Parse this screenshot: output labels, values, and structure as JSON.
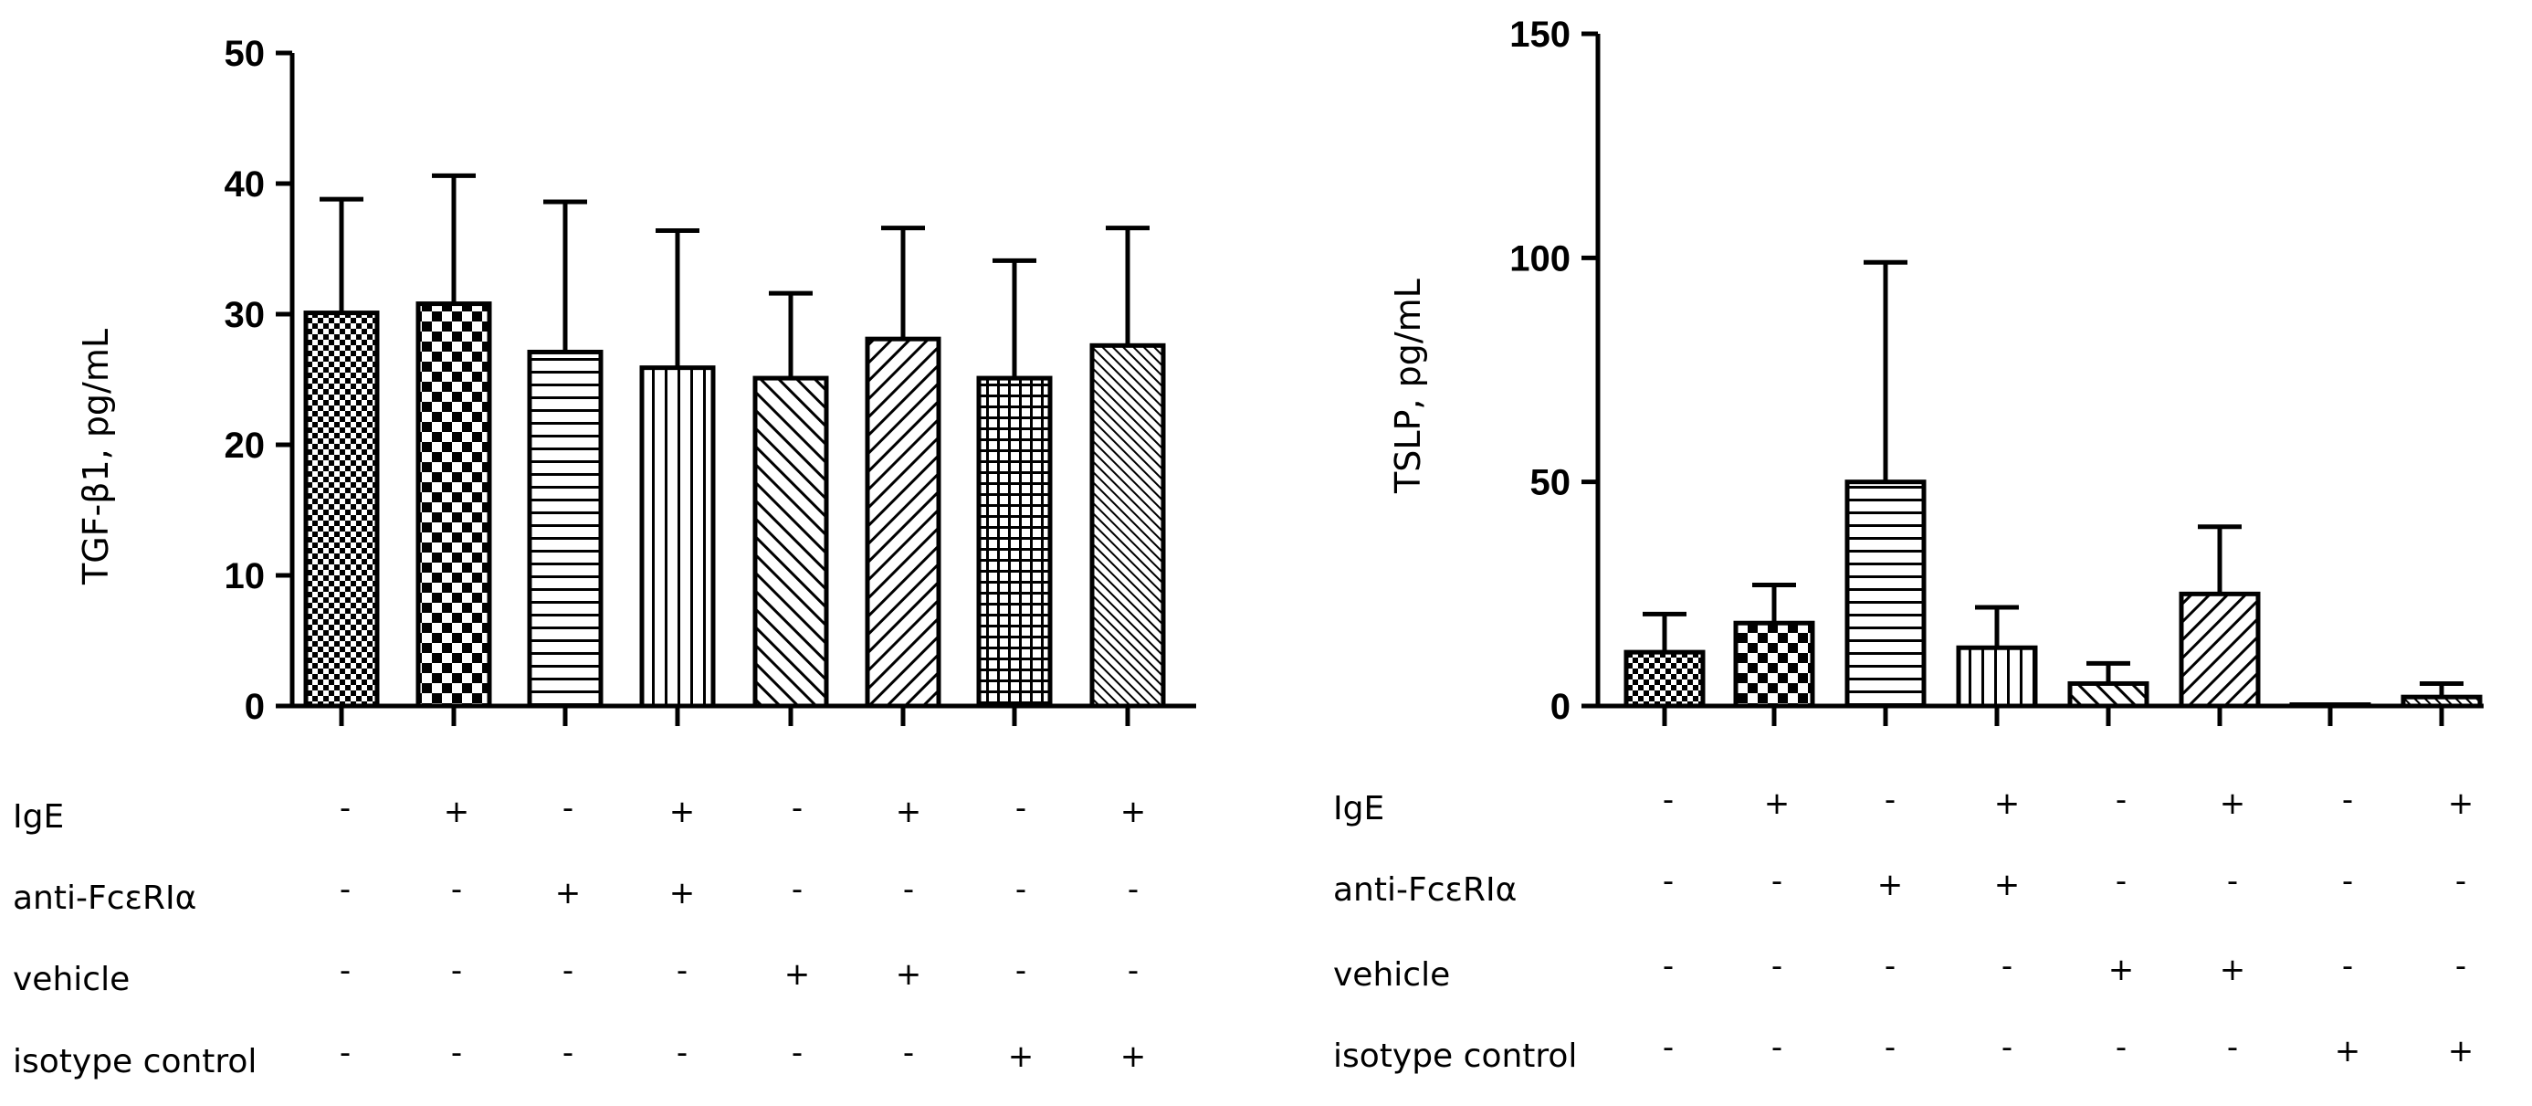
{
  "chart_data": [
    {
      "type": "bar",
      "ylabel": "TGF-β1, pg/mL",
      "ylim": [
        0,
        50
      ],
      "yticks": [
        "0",
        "10",
        "20",
        "30",
        "40",
        "50"
      ],
      "values": [
        30.1,
        30.8,
        27.1,
        25.9,
        25.1,
        28.1,
        25.1,
        27.6
      ],
      "errors": [
        8.7,
        9.8,
        11.5,
        10.5,
        6.5,
        8.5,
        9.0,
        9.0
      ],
      "patterns": [
        "checker-fine",
        "checker-coarse",
        "horizontal",
        "vertical",
        "diag-up",
        "diag-down",
        "grid",
        "diag-dense"
      ],
      "rows": [
        {
          "label": "IgE",
          "signs": [
            "-",
            "+",
            "-",
            "+",
            "-",
            "+",
            "-",
            "+"
          ]
        },
        {
          "label": "anti-FcεRIα",
          "signs": [
            "-",
            "-",
            "+",
            "+",
            "-",
            "-",
            "-",
            "-"
          ]
        },
        {
          "label": "vehicle",
          "signs": [
            "-",
            "-",
            "-",
            "-",
            "+",
            "+",
            "-",
            "-"
          ]
        },
        {
          "label": "isotype control",
          "signs": [
            "-",
            "-",
            "-",
            "-",
            "-",
            "-",
            "+",
            "+"
          ]
        }
      ]
    },
    {
      "type": "bar",
      "ylabel": "TSLP, pg/mL",
      "ylim": [
        0,
        150
      ],
      "yticks": [
        "0",
        "50",
        "100",
        "150"
      ],
      "values": [
        12,
        18.5,
        50,
        13,
        5,
        25,
        0.3,
        2
      ],
      "errors": [
        8.5,
        8.5,
        49,
        9,
        4.5,
        15,
        0,
        3
      ],
      "patterns": [
        "checker-fine",
        "checker-coarse",
        "horizontal",
        "vertical",
        "diag-up",
        "diag-down",
        "grid",
        "diag-dense"
      ],
      "rows": [
        {
          "label": "IgE",
          "signs": [
            "-",
            "+",
            "-",
            "+",
            "-",
            "+",
            "-",
            "+"
          ]
        },
        {
          "label": "anti-FcεRIα",
          "signs": [
            "-",
            "-",
            "+",
            "+",
            "-",
            "-",
            "-",
            "-"
          ]
        },
        {
          "label": "vehicle",
          "signs": [
            "-",
            "-",
            "-",
            "-",
            "+",
            "+",
            "-",
            "-"
          ]
        },
        {
          "label": "isotype control",
          "signs": [
            "-",
            "-",
            "-",
            "-",
            "-",
            "-",
            "+",
            "+"
          ]
        }
      ]
    }
  ]
}
